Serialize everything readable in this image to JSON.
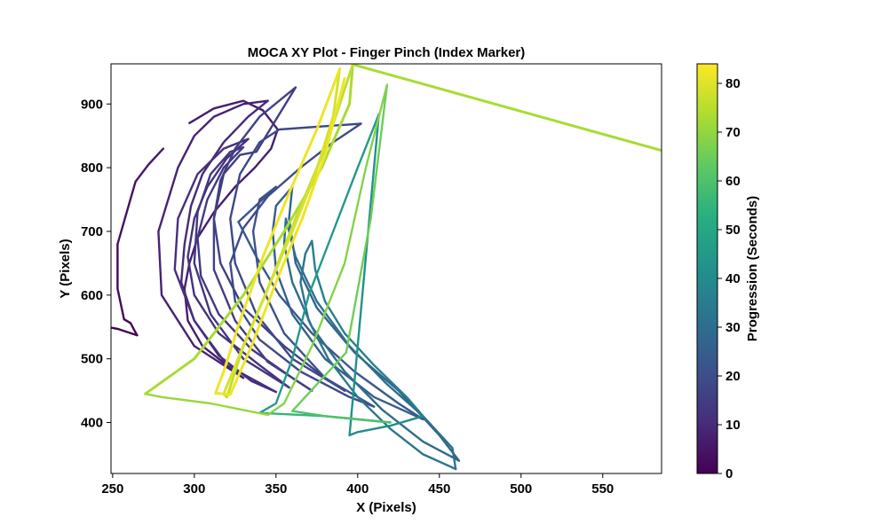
{
  "chart_data": {
    "type": "line",
    "title": "MOCA XY Plot - Finger Pinch (Index Marker)",
    "xlabel": "X (Pixels)",
    "ylabel": "Y (Pixels)",
    "xlim": [
      249,
      586
    ],
    "ylim": [
      320,
      963
    ],
    "xticks": [
      "250",
      "300",
      "350",
      "400",
      "450",
      "500",
      "550"
    ],
    "yticks": [
      "400",
      "500",
      "600",
      "700",
      "800",
      "900"
    ],
    "grid": false,
    "colorbar": {
      "label": "Progression (Seconds)",
      "range": [
        0,
        84
      ],
      "ticks": [
        "0",
        "10",
        "20",
        "30",
        "40",
        "50",
        "60",
        "70",
        "80"
      ],
      "colormap": "viridis"
    },
    "series": [
      {
        "t": 0,
        "points": [
          [
            265,
            537
          ],
          [
            253,
            547
          ],
          [
            249,
            549
          ]
        ]
      },
      {
        "t": 1,
        "points": [
          [
            257,
            562
          ],
          [
            261,
            556
          ],
          [
            263,
            546
          ],
          [
            265,
            537
          ]
        ]
      },
      {
        "t": 2,
        "points": [
          [
            253,
            680
          ],
          [
            253,
            610
          ],
          [
            257,
            562
          ]
        ]
      },
      {
        "t": 4,
        "points": [
          [
            264,
            778
          ],
          [
            253,
            680
          ]
        ]
      },
      {
        "t": 6,
        "points": [
          [
            281,
            830
          ],
          [
            272,
            805
          ],
          [
            264,
            778
          ]
        ]
      },
      {
        "t": 7,
        "points": [
          [
            297,
            870
          ],
          [
            312,
            893
          ],
          [
            330,
            905
          ],
          [
            342,
            890
          ],
          [
            351,
            860
          ],
          [
            347,
            830
          ],
          [
            337,
            800
          ],
          [
            325,
            770
          ],
          [
            312,
            730
          ],
          [
            302,
            690
          ],
          [
            297,
            650
          ],
          [
            294,
            610
          ],
          [
            296,
            560
          ],
          [
            305,
            520
          ],
          [
            320,
            490
          ],
          [
            330,
            470
          ]
        ]
      },
      {
        "t": 8,
        "points": [
          [
            330,
            470
          ],
          [
            300,
            520
          ],
          [
            280,
            600
          ],
          [
            278,
            700
          ],
          [
            290,
            800
          ],
          [
            300,
            850
          ],
          [
            312,
            880
          ],
          [
            330,
            900
          ],
          [
            345,
            905
          ]
        ]
      },
      {
        "t": 10,
        "points": [
          [
            345,
            905
          ],
          [
            333,
            880
          ],
          [
            318,
            840
          ],
          [
            305,
            790
          ],
          [
            298,
            740
          ],
          [
            294,
            680
          ],
          [
            292,
            620
          ],
          [
            300,
            560
          ],
          [
            315,
            505
          ],
          [
            335,
            465
          ],
          [
            350,
            448
          ]
        ]
      },
      {
        "t": 11,
        "points": [
          [
            350,
            448
          ],
          [
            320,
            490
          ],
          [
            300,
            560
          ],
          [
            288,
            640
          ],
          [
            290,
            720
          ],
          [
            302,
            790
          ],
          [
            318,
            830
          ],
          [
            333,
            845
          ]
        ]
      },
      {
        "t": 12,
        "points": [
          [
            333,
            845
          ],
          [
            320,
            815
          ],
          [
            308,
            770
          ],
          [
            300,
            720
          ],
          [
            296,
            660
          ],
          [
            300,
            600
          ],
          [
            315,
            540
          ],
          [
            340,
            490
          ],
          [
            358,
            455
          ]
        ]
      },
      {
        "t": 13,
        "points": [
          [
            358,
            455
          ],
          [
            330,
            500
          ],
          [
            310,
            570
          ],
          [
            300,
            650
          ],
          [
            302,
            730
          ],
          [
            310,
            790
          ],
          [
            322,
            825
          ],
          [
            330,
            832
          ]
        ]
      },
      {
        "t": 14,
        "points": [
          [
            330,
            832
          ],
          [
            318,
            800
          ],
          [
            308,
            750
          ],
          [
            302,
            690
          ],
          [
            304,
            630
          ],
          [
            315,
            570
          ],
          [
            335,
            515
          ],
          [
            360,
            470
          ],
          [
            372,
            450
          ]
        ]
      },
      {
        "t": 15,
        "points": [
          [
            372,
            450
          ],
          [
            345,
            495
          ],
          [
            325,
            560
          ],
          [
            312,
            640
          ],
          [
            312,
            720
          ],
          [
            318,
            790
          ],
          [
            328,
            820
          ],
          [
            338,
            825
          ],
          [
            362,
            926
          ]
        ]
      },
      {
        "t": 16,
        "points": [
          [
            362,
            926
          ],
          [
            340,
            880
          ],
          [
            325,
            830
          ],
          [
            316,
            780
          ],
          [
            312,
            720
          ],
          [
            316,
            650
          ],
          [
            330,
            580
          ],
          [
            355,
            520
          ],
          [
            380,
            470
          ],
          [
            392,
            450
          ]
        ]
      },
      {
        "t": 18,
        "points": [
          [
            392,
            450
          ],
          [
            360,
            500
          ],
          [
            338,
            570
          ],
          [
            325,
            650
          ],
          [
            322,
            720
          ],
          [
            328,
            790
          ],
          [
            340,
            840
          ],
          [
            352,
            860
          ],
          [
            402,
            869
          ]
        ]
      },
      {
        "t": 19,
        "points": [
          [
            402,
            869
          ],
          [
            385,
            840
          ],
          [
            365,
            800
          ],
          [
            345,
            755
          ],
          [
            330,
            705
          ],
          [
            322,
            650
          ],
          [
            325,
            590
          ],
          [
            340,
            530
          ],
          [
            365,
            480
          ],
          [
            395,
            440
          ],
          [
            410,
            425
          ]
        ]
      },
      {
        "t": 21,
        "points": [
          [
            410,
            425
          ],
          [
            380,
            470
          ],
          [
            355,
            540
          ],
          [
            340,
            620
          ],
          [
            336,
            700
          ],
          [
            340,
            750
          ],
          [
            350,
            770
          ],
          [
            327,
            715
          ]
        ]
      },
      {
        "t": 23,
        "points": [
          [
            327,
            715
          ],
          [
            338,
            660
          ],
          [
            352,
            600
          ],
          [
            372,
            540
          ],
          [
            398,
            480
          ],
          [
            425,
            430
          ],
          [
            440,
            405
          ]
        ]
      },
      {
        "t": 25,
        "points": [
          [
            440,
            405
          ],
          [
            410,
            440
          ],
          [
            380,
            500
          ],
          [
            360,
            570
          ],
          [
            350,
            640
          ],
          [
            348,
            700
          ],
          [
            350,
            740
          ],
          [
            360,
            770
          ]
        ]
      },
      {
        "t": 27,
        "points": [
          [
            360,
            770
          ],
          [
            358,
            720
          ],
          [
            362,
            650
          ],
          [
            375,
            580
          ],
          [
            398,
            510
          ],
          [
            425,
            450
          ],
          [
            450,
            380
          ],
          [
            462,
            340
          ]
        ]
      },
      {
        "t": 29,
        "points": [
          [
            462,
            340
          ],
          [
            440,
            370
          ],
          [
            415,
            420
          ],
          [
            392,
            480
          ],
          [
            372,
            550
          ],
          [
            360,
            620
          ],
          [
            355,
            680
          ],
          [
            356,
            720
          ]
        ]
      },
      {
        "t": 31,
        "points": [
          [
            356,
            720
          ],
          [
            362,
            660
          ],
          [
            375,
            590
          ],
          [
            395,
            520
          ],
          [
            418,
            460
          ],
          [
            440,
            410
          ],
          [
            458,
            360
          ],
          [
            460,
            327
          ]
        ]
      },
      {
        "t": 33,
        "points": [
          [
            460,
            327
          ],
          [
            440,
            350
          ],
          [
            420,
            390
          ],
          [
            400,
            440
          ],
          [
            382,
            500
          ],
          [
            370,
            560
          ],
          [
            365,
            620
          ],
          [
            368,
            665
          ],
          [
            372,
            685
          ]
        ]
      },
      {
        "t": 36,
        "points": [
          [
            372,
            685
          ],
          [
            374,
            640
          ],
          [
            380,
            590
          ],
          [
            392,
            540
          ],
          [
            410,
            490
          ],
          [
            430,
            440
          ],
          [
            440,
            410
          ]
        ]
      },
      {
        "t": 40,
        "points": [
          [
            440,
            410
          ],
          [
            420,
            395
          ],
          [
            400,
            385
          ],
          [
            395,
            380
          ]
        ]
      },
      {
        "t": 42,
        "points": [
          [
            395,
            380
          ],
          [
            413,
            884
          ]
        ]
      },
      {
        "t": 45,
        "points": [
          [
            413,
            884
          ],
          [
            400,
            800
          ],
          [
            385,
            700
          ],
          [
            370,
            600
          ],
          [
            360,
            500
          ],
          [
            350,
            430
          ],
          [
            340,
            415
          ]
        ]
      },
      {
        "t": 55,
        "points": [
          [
            340,
            415
          ],
          [
            380,
            410
          ],
          [
            420,
            400
          ]
        ]
      },
      {
        "t": 60,
        "points": [
          [
            420,
            400
          ],
          [
            380,
            410
          ],
          [
            360,
            418
          ]
        ]
      },
      {
        "t": 65,
        "points": [
          [
            360,
            418
          ],
          [
            393,
            510
          ],
          [
            408,
            720
          ],
          [
            418,
            930
          ]
        ]
      },
      {
        "t": 68,
        "points": [
          [
            418,
            930
          ],
          [
            405,
            800
          ],
          [
            392,
            650
          ],
          [
            372,
            520
          ],
          [
            355,
            430
          ],
          [
            345,
            412
          ]
        ]
      },
      {
        "t": 71,
        "points": [
          [
            345,
            412
          ],
          [
            310,
            430
          ],
          [
            280,
            440
          ],
          [
            270,
            445
          ]
        ]
      },
      {
        "t": 73,
        "points": [
          [
            270,
            445
          ],
          [
            300,
            500
          ],
          [
            330,
            600
          ],
          [
            355,
            700
          ],
          [
            378,
            800
          ],
          [
            395,
            900
          ],
          [
            397,
            962
          ],
          [
            586,
            827
          ]
        ]
      },
      {
        "t": 76,
        "points": [
          [
            397,
            962
          ],
          [
            380,
            830
          ],
          [
            362,
            720
          ],
          [
            345,
            610
          ],
          [
            330,
            520
          ],
          [
            320,
            440
          ],
          [
            318,
            445
          ]
        ]
      },
      {
        "t": 79,
        "points": [
          [
            318,
            445
          ],
          [
            330,
            520
          ],
          [
            345,
            610
          ],
          [
            360,
            700
          ],
          [
            374,
            790
          ],
          [
            385,
            880
          ],
          [
            389,
            955
          ]
        ]
      },
      {
        "t": 82,
        "points": [
          [
            389,
            955
          ],
          [
            375,
            860
          ],
          [
            358,
            760
          ],
          [
            342,
            660
          ],
          [
            328,
            560
          ],
          [
            318,
            480
          ],
          [
            313,
            446
          ],
          [
            322,
            444
          ],
          [
            335,
            520
          ],
          [
            350,
            620
          ],
          [
            366,
            720
          ],
          [
            380,
            820
          ],
          [
            392,
            940
          ]
        ]
      }
    ]
  }
}
